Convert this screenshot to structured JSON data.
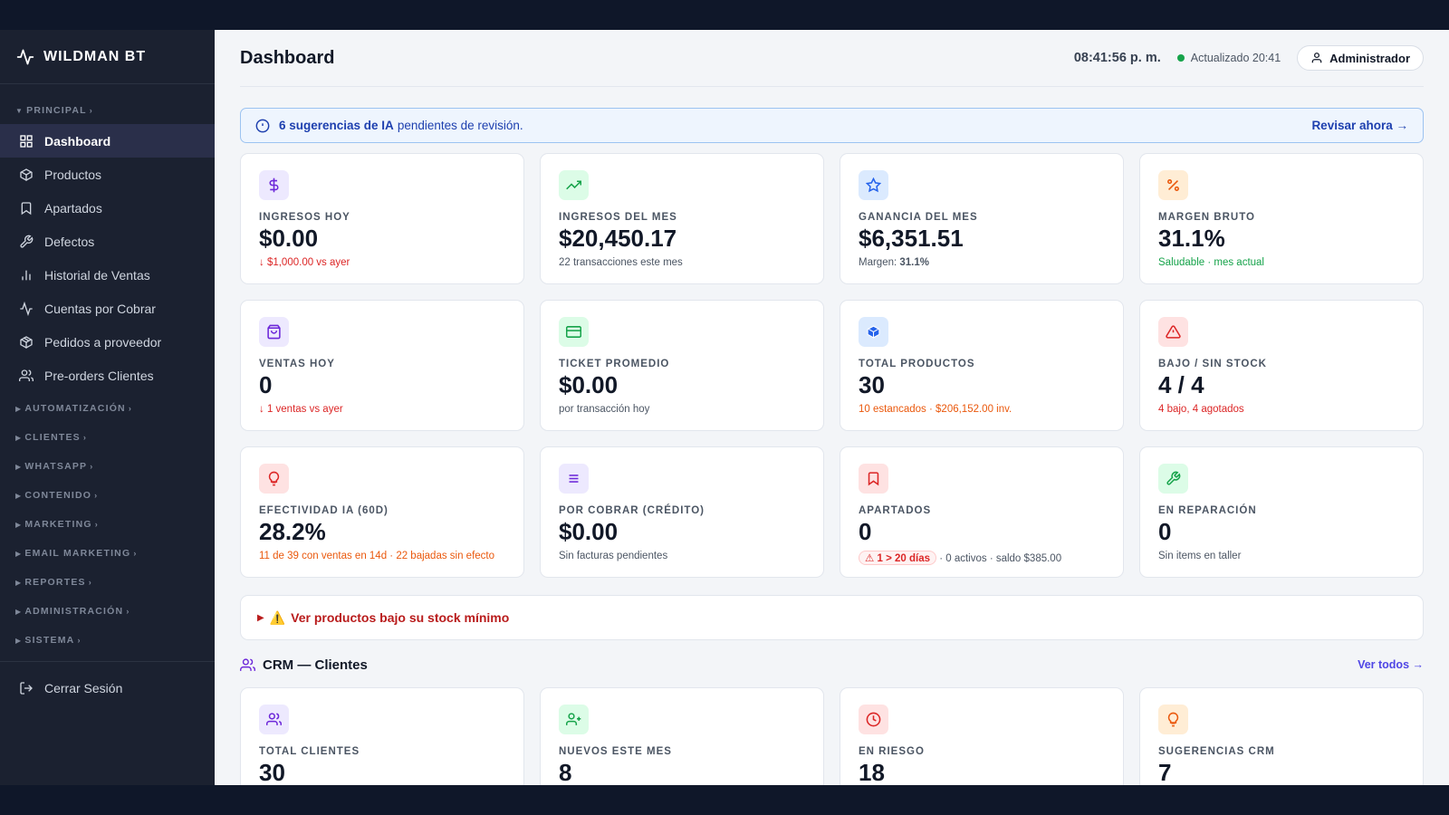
{
  "sidebar": {
    "brand": "WILDMAN BT",
    "principal_label": "PRINCIPAL",
    "items": [
      {
        "label": "Dashboard",
        "icon": "grid-icon"
      },
      {
        "label": "Productos",
        "icon": "box-icon"
      },
      {
        "label": "Apartados",
        "icon": "bookmark-icon"
      },
      {
        "label": "Defectos",
        "icon": "wrench-icon"
      },
      {
        "label": "Historial de Ventas",
        "icon": "bar-chart-icon"
      },
      {
        "label": "Cuentas por Cobrar",
        "icon": "activity-icon"
      },
      {
        "label": "Pedidos a proveedor",
        "icon": "package-icon"
      },
      {
        "label": "Pre-orders Clientes",
        "icon": "users-icon"
      }
    ],
    "sections": [
      "AUTOMATIZACIÓN",
      "CLIENTES",
      "WHATSAPP",
      "CONTENIDO",
      "MARKETING",
      "EMAIL MARKETING",
      "REPORTES",
      "ADMINISTRACIÓN",
      "SISTEMA"
    ],
    "logout": "Cerrar Sesión"
  },
  "header": {
    "title": "Dashboard",
    "clock": "08:41:56 p. m.",
    "updated": "Actualizado 20:41",
    "user": "Administrador"
  },
  "banner": {
    "bold": "6 sugerencias de IA",
    "rest": "pendientes de revisión.",
    "action": "Revisar ahora →"
  },
  "kpis": [
    {
      "label": "INGRESOS HOY",
      "value": "$0.00",
      "sub": "↓ $1,000.00 vs ayer",
      "icon": "dollar-icon"
    },
    {
      "label": "INGRESOS DEL MES",
      "value": "$20,450.17",
      "sub": "22 transacciones este mes",
      "icon": "trending-up-icon"
    },
    {
      "label": "GANANCIA DEL MES",
      "value": "$6,351.51",
      "sub_prefix": "Margen: ",
      "sub_bold": "31.1%",
      "icon": "star-icon"
    },
    {
      "label": "MARGEN BRUTO",
      "value": "31.1%",
      "sub": "Saludable · mes actual",
      "icon": "percent-icon"
    },
    {
      "label": "VENTAS HOY",
      "value": "0",
      "sub": "↓ 1 ventas vs ayer",
      "icon": "shopping-bag-icon"
    },
    {
      "label": "TICKET PROMEDIO",
      "value": "$0.00",
      "sub": "por transacción hoy",
      "icon": "credit-card-icon"
    },
    {
      "label": "TOTAL PRODUCTOS",
      "value": "30",
      "sub": "10 estancados · $206,152.00 inv.",
      "icon": "cube-icon"
    },
    {
      "label": "BAJO / SIN STOCK",
      "value": "4 / 4",
      "sub": "4 bajo, 4 agotados",
      "icon": "alert-triangle-icon"
    },
    {
      "label": "EFECTIVIDAD IA (60D)",
      "value": "28.2%",
      "sub": "11 de 39 con ventas en 14d · 22 bajadas sin efecto",
      "icon": "lightbulb-icon"
    },
    {
      "label": "POR COBRAR (CRÉDITO)",
      "value": "$0.00",
      "sub": "Sin facturas pendientes",
      "icon": "list-icon"
    },
    {
      "label": "APARTADOS",
      "value": "0",
      "pill": "⚠ 1 > 20 días",
      "sub": " · 0 activos · saldo $385.00",
      "icon": "bookmark-icon"
    },
    {
      "label": "EN REPARACIÓN",
      "value": "0",
      "sub": "Sin items en taller",
      "icon": "wrench-icon"
    }
  ],
  "stock_toggle": {
    "label": "Ver productos bajo su stock mínimo",
    "arrow": "▶",
    "emoji": "⚠️"
  },
  "crm": {
    "title": "CRM — Clientes",
    "link": "Ver todos →",
    "cards": [
      {
        "label": "TOTAL CLIENTES",
        "value": "30",
        "icon": "users-icon"
      },
      {
        "label": "NUEVOS ESTE MES",
        "value": "8",
        "icon": "user-plus-icon"
      },
      {
        "label": "EN RIESGO",
        "value": "18",
        "icon": "clock-icon"
      },
      {
        "label": "SUGERENCIAS CRM",
        "value": "7",
        "icon": "lightbulb-icon"
      }
    ]
  },
  "colors": {
    "accent": "#4f46e5",
    "danger": "#dc2626",
    "success": "#16a34a",
    "warning": "#ea580c",
    "sidebar_bg": "#1b2130"
  }
}
